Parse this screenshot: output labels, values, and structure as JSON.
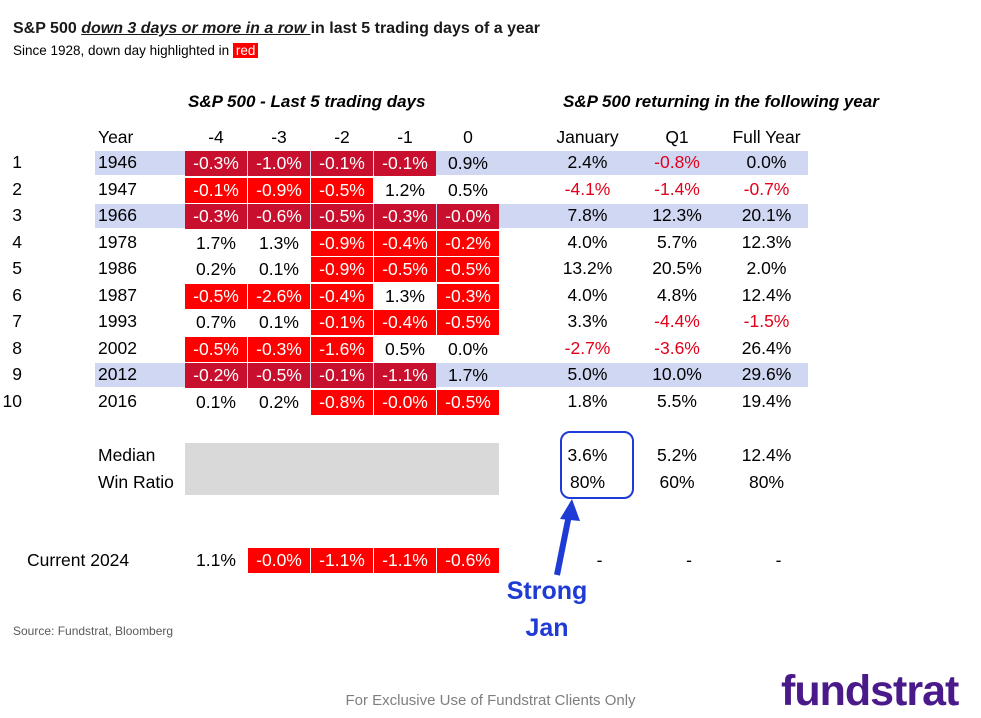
{
  "header": {
    "title_prefix": "S&P 500 ",
    "title_emph": "down 3 days or more in a row ",
    "title_suffix": "in last 5 trading days of a year",
    "subtitle_prefix": "Since 1928, down day highlighted in ",
    "subtitle_chip": "red"
  },
  "chart_data": {
    "type": "table",
    "left_section_title": "S&P 500 - Last 5 trading days",
    "right_section_title": "S&P 500 returning in the following year",
    "col_headers": [
      "Year",
      "-4",
      "-3",
      "-2",
      "-1",
      "0",
      "January",
      "Q1",
      "Full Year"
    ],
    "rows": [
      {
        "n": "1",
        "year": "1946",
        "days": [
          "-0.3%",
          "-1.0%",
          "-0.1%",
          "-0.1%",
          "0.9%"
        ],
        "next": [
          "2.4%",
          "-0.8%",
          "0.0%"
        ],
        "down": [
          1,
          1,
          1,
          1,
          0
        ],
        "band": true
      },
      {
        "n": "2",
        "year": "1947",
        "days": [
          "-0.1%",
          "-0.9%",
          "-0.5%",
          "1.2%",
          "0.5%"
        ],
        "next": [
          "-4.1%",
          "-1.4%",
          "-0.7%"
        ],
        "down": [
          1,
          1,
          1,
          0,
          0
        ],
        "band": false
      },
      {
        "n": "3",
        "year": "1966",
        "days": [
          "-0.3%",
          "-0.6%",
          "-0.5%",
          "-0.3%",
          "-0.0%"
        ],
        "next": [
          "7.8%",
          "12.3%",
          "20.1%"
        ],
        "down": [
          1,
          1,
          1,
          1,
          1
        ],
        "band": true
      },
      {
        "n": "4",
        "year": "1978",
        "days": [
          "1.7%",
          "1.3%",
          "-0.9%",
          "-0.4%",
          "-0.2%"
        ],
        "next": [
          "4.0%",
          "5.7%",
          "12.3%"
        ],
        "down": [
          0,
          0,
          1,
          1,
          1
        ],
        "band": false
      },
      {
        "n": "5",
        "year": "1986",
        "days": [
          "0.2%",
          "0.1%",
          "-0.9%",
          "-0.5%",
          "-0.5%"
        ],
        "next": [
          "13.2%",
          "20.5%",
          "2.0%"
        ],
        "down": [
          0,
          0,
          1,
          1,
          1
        ],
        "band": false
      },
      {
        "n": "6",
        "year": "1987",
        "days": [
          "-0.5%",
          "-2.6%",
          "-0.4%",
          "1.3%",
          "-0.3%"
        ],
        "next": [
          "4.0%",
          "4.8%",
          "12.4%"
        ],
        "down": [
          1,
          1,
          1,
          0,
          1
        ],
        "band": false
      },
      {
        "n": "7",
        "year": "1993",
        "days": [
          "0.7%",
          "0.1%",
          "-0.1%",
          "-0.4%",
          "-0.5%"
        ],
        "next": [
          "3.3%",
          "-4.4%",
          "-1.5%"
        ],
        "down": [
          0,
          0,
          1,
          1,
          1
        ],
        "band": false
      },
      {
        "n": "8",
        "year": "2002",
        "days": [
          "-0.5%",
          "-0.3%",
          "-1.6%",
          "0.5%",
          "0.0%"
        ],
        "next": [
          "-2.7%",
          "-3.6%",
          "26.4%"
        ],
        "down": [
          1,
          1,
          1,
          0,
          0
        ],
        "band": false
      },
      {
        "n": "9",
        "year": "2012",
        "days": [
          "-0.2%",
          "-0.5%",
          "-0.1%",
          "-1.1%",
          "1.7%"
        ],
        "next": [
          "5.0%",
          "10.0%",
          "29.6%"
        ],
        "down": [
          1,
          1,
          1,
          1,
          0
        ],
        "band": true
      },
      {
        "n": "10",
        "year": "2016",
        "days": [
          "0.1%",
          "0.2%",
          "-0.8%",
          "-0.0%",
          "-0.5%"
        ],
        "next": [
          "1.8%",
          "5.5%",
          "19.4%"
        ],
        "down": [
          0,
          0,
          1,
          1,
          1
        ],
        "band": false
      }
    ],
    "summary": [
      {
        "label": "Median",
        "next": [
          "3.6%",
          "5.2%",
          "12.4%"
        ]
      },
      {
        "label": "Win Ratio",
        "next": [
          "80%",
          "60%",
          "80%"
        ]
      }
    ],
    "current": {
      "label": "Current 2024",
      "days": [
        "1.1%",
        "-0.0%",
        "-1.1%",
        "-1.1%",
        "-0.6%"
      ],
      "down": [
        0,
        1,
        1,
        1,
        1
      ],
      "next": [
        "-",
        "-",
        "-"
      ]
    }
  },
  "annotation": {
    "line1": "Strong",
    "line2": "Jan"
  },
  "footer": {
    "source": "Source: Fundstrat, Bloomberg",
    "disclaimer": "For Exclusive Use of Fundstrat Clients Only",
    "logo": "fundstrat"
  },
  "colors": {
    "red": "#ff0000",
    "dark_red": "#c8102e",
    "band": "#d0d7f3",
    "blue": "#1f3bd6",
    "logo": "#4b1a8a"
  }
}
